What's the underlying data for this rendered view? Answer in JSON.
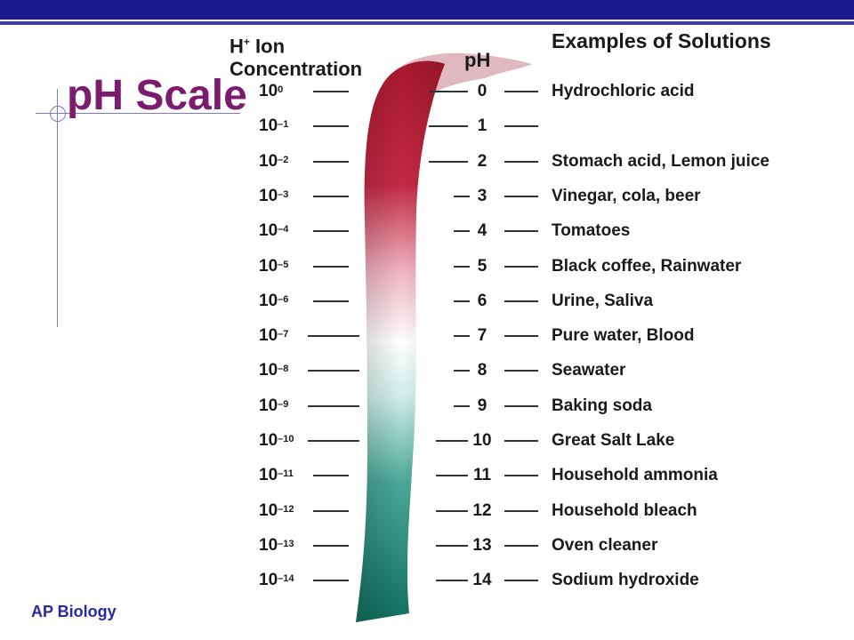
{
  "title": "pH Scale",
  "headers": {
    "concentration_line1": "H",
    "concentration_sup": "+",
    "concentration_rest": " Ion",
    "concentration_line2": "Concentration",
    "ph": "pH",
    "examples": "Examples of Solutions"
  },
  "rows": [
    {
      "base": "10",
      "exp": "0",
      "ph": "0",
      "example": "Hydrochloric acid"
    },
    {
      "base": "10",
      "exp": "–1",
      "ph": "1",
      "example": ""
    },
    {
      "base": "10",
      "exp": "–2",
      "ph": "2",
      "example": "Stomach acid, Lemon juice"
    },
    {
      "base": "10",
      "exp": "–3",
      "ph": "3",
      "example": "Vinegar, cola, beer"
    },
    {
      "base": "10",
      "exp": "–4",
      "ph": "4",
      "example": "Tomatoes"
    },
    {
      "base": "10",
      "exp": "–5",
      "ph": "5",
      "example": "Black coffee, Rainwater"
    },
    {
      "base": "10",
      "exp": "–6",
      "ph": "6",
      "example": "Urine, Saliva"
    },
    {
      "base": "10",
      "exp": "–7",
      "ph": "7",
      "example": "Pure water, Blood"
    },
    {
      "base": "10",
      "exp": "–8",
      "ph": "8",
      "example": "Seawater"
    },
    {
      "base": "10",
      "exp": "–9",
      "ph": "9",
      "example": "Baking soda"
    },
    {
      "base": "10",
      "exp": "–10",
      "ph": "10",
      "example": "Great Salt Lake"
    },
    {
      "base": "10",
      "exp": "–11",
      "ph": "11",
      "example": "Household ammonia"
    },
    {
      "base": "10",
      "exp": "–12",
      "ph": "12",
      "example": "Household bleach"
    },
    {
      "base": "10",
      "exp": "–13",
      "ph": "13",
      "example": "Oven cleaner"
    },
    {
      "base": "10",
      "exp": "–14",
      "ph": "14",
      "example": "Sodium hydroxide"
    }
  ],
  "footer": "AP Biology",
  "colors": {
    "acid": "#b01a2e",
    "neutral": "#ffffff",
    "base": "#1a7a6e",
    "title": "#7b1c6e",
    "topbar": "#1a1a8c"
  }
}
